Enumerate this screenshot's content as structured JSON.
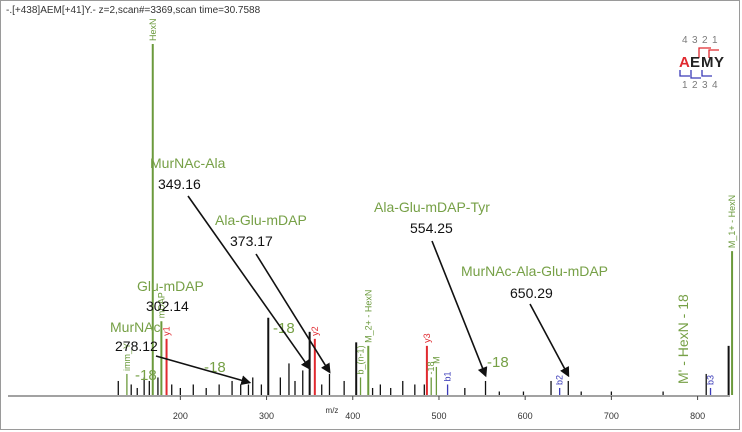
{
  "chart_data": {
    "type": "spectrum",
    "title": "-.[+438]AEM[+41]Y.- z=2,scan#=3369,scan time=30.7588",
    "xlabel": "m/z",
    "ylabel": "",
    "xlim": [
      110,
      840
    ],
    "ylim": [
      0,
      100
    ],
    "x_ticks": [
      200,
      300,
      400,
      500,
      600,
      700,
      800
    ],
    "colors": {
      "green": "#6b9a3c",
      "red": "#e0292f",
      "blue": "#3a3ab8",
      "black": "#111111",
      "label_green": "#76a046"
    },
    "sequence_widget": {
      "residues": [
        "A",
        "E",
        "M",
        "Y"
      ],
      "top_numbers": [
        "4",
        "3",
        "2",
        "1"
      ],
      "bottom_numbers": [
        "1",
        "2",
        "3",
        "4"
      ]
    },
    "peaks": [
      {
        "mz": 128,
        "intensity": 4,
        "color": "black"
      },
      {
        "mz": 138,
        "intensity": 6,
        "color": "green",
        "label": "imm_Y"
      },
      {
        "mz": 143,
        "intensity": 3,
        "color": "black"
      },
      {
        "mz": 150,
        "intensity": 2,
        "color": "black"
      },
      {
        "mz": 158,
        "intensity": 5,
        "color": "black"
      },
      {
        "mz": 164,
        "intensity": 4,
        "color": "black"
      },
      {
        "mz": 168,
        "intensity": 100,
        "color": "green",
        "label": "HexN"
      },
      {
        "mz": 174,
        "intensity": 5,
        "color": "black"
      },
      {
        "mz": 178,
        "intensity": 21,
        "color": "green",
        "label": "mDAP"
      },
      {
        "mz": 184,
        "intensity": 16,
        "color": "red",
        "label": "y1"
      },
      {
        "mz": 190,
        "intensity": 3,
        "color": "black"
      },
      {
        "mz": 200,
        "intensity": 2,
        "color": "black"
      },
      {
        "mz": 215,
        "intensity": 3,
        "color": "black"
      },
      {
        "mz": 230,
        "intensity": 2,
        "color": "black"
      },
      {
        "mz": 245,
        "intensity": 3,
        "color": "black"
      },
      {
        "mz": 260,
        "intensity": 4,
        "color": "black"
      },
      {
        "mz": 270,
        "intensity": 3,
        "color": "black"
      },
      {
        "mz": 279,
        "intensity": 3,
        "color": "black"
      },
      {
        "mz": 284,
        "intensity": 5,
        "color": "black"
      },
      {
        "mz": 294,
        "intensity": 3,
        "color": "black"
      },
      {
        "mz": 302,
        "intensity": 22,
        "color": "black"
      },
      {
        "mz": 316,
        "intensity": 5,
        "color": "black"
      },
      {
        "mz": 326,
        "intensity": 9,
        "color": "black"
      },
      {
        "mz": 333,
        "intensity": 4,
        "color": "black"
      },
      {
        "mz": 342,
        "intensity": 7,
        "color": "black"
      },
      {
        "mz": 350,
        "intensity": 18,
        "color": "black"
      },
      {
        "mz": 356,
        "intensity": 16,
        "color": "red",
        "label": "y2"
      },
      {
        "mz": 364,
        "intensity": 3,
        "color": "black"
      },
      {
        "mz": 373,
        "intensity": 6,
        "color": "black"
      },
      {
        "mz": 390,
        "intensity": 4,
        "color": "black"
      },
      {
        "mz": 404,
        "intensity": 15,
        "color": "black"
      },
      {
        "mz": 409,
        "intensity": 5,
        "color": "green",
        "label": "b_(n-1)"
      },
      {
        "mz": 418,
        "intensity": 14,
        "color": "green",
        "label": "M_2+ - HexN"
      },
      {
        "mz": 423,
        "intensity": 2,
        "color": "black"
      },
      {
        "mz": 432,
        "intensity": 3,
        "color": "black"
      },
      {
        "mz": 444,
        "intensity": 2,
        "color": "black"
      },
      {
        "mz": 458,
        "intensity": 4,
        "color": "black"
      },
      {
        "mz": 472,
        "intensity": 3,
        "color": "black"
      },
      {
        "mz": 483,
        "intensity": 3,
        "color": "black"
      },
      {
        "mz": 486,
        "intensity": 14,
        "color": "red",
        "label": "y3"
      },
      {
        "mz": 491,
        "intensity": 5,
        "color": "green",
        "label": "-18"
      },
      {
        "mz": 497,
        "intensity": 8,
        "color": "green",
        "label": "M"
      },
      {
        "mz": 510,
        "intensity": 3,
        "color": "blue",
        "label": "b1"
      },
      {
        "mz": 530,
        "intensity": 2,
        "color": "black"
      },
      {
        "mz": 554,
        "intensity": 4,
        "color": "black"
      },
      {
        "mz": 570,
        "intensity": 1,
        "color": "black"
      },
      {
        "mz": 598,
        "intensity": 1,
        "color": "black"
      },
      {
        "mz": 630,
        "intensity": 4,
        "color": "black"
      },
      {
        "mz": 640,
        "intensity": 2,
        "color": "blue",
        "label": "b2"
      },
      {
        "mz": 650,
        "intensity": 4,
        "color": "black"
      },
      {
        "mz": 665,
        "intensity": 1,
        "color": "black"
      },
      {
        "mz": 700,
        "intensity": 1,
        "color": "black"
      },
      {
        "mz": 760,
        "intensity": 1,
        "color": "black"
      },
      {
        "mz": 810,
        "intensity": 6,
        "color": "black"
      },
      {
        "mz": 815,
        "intensity": 2,
        "color": "blue",
        "label": "b3"
      },
      {
        "mz": 836,
        "intensity": 14,
        "color": "black"
      },
      {
        "mz": 840,
        "intensity": 41,
        "color": "green",
        "label": "M_1+ - HexN"
      }
    ],
    "annotations": [
      {
        "name": "MurNAc",
        "value": "278.12",
        "arrow_to_mz": 280,
        "arrow_to_intensity": 3
      },
      {
        "name": "Glu-mDAP",
        "value": "302.14",
        "arrow_to_mz": null,
        "arrow_to_intensity": null
      },
      {
        "name": "MurNAc-Ala",
        "value": "349.16",
        "arrow_to_mz": 350,
        "arrow_to_intensity": 7
      },
      {
        "name": "Ala-Glu-mDAP",
        "value": "373.17",
        "arrow_to_mz": 373,
        "arrow_to_intensity": 6
      },
      {
        "name": "Ala-Glu-mDAP-Tyr",
        "value": "554.25",
        "arrow_to_mz": 554,
        "arrow_to_intensity": 5
      },
      {
        "name": "MurNAc-Ala-Glu-mDAP",
        "value": "650.29",
        "arrow_to_mz": 650,
        "arrow_to_intensity": 5
      },
      {
        "name": "M' - HexN - 18",
        "value": "",
        "arrow_to_mz": null,
        "arrow_to_intensity": null
      }
    ],
    "minus18_labels": [
      "-18",
      "-18",
      "-18",
      "-18"
    ]
  }
}
